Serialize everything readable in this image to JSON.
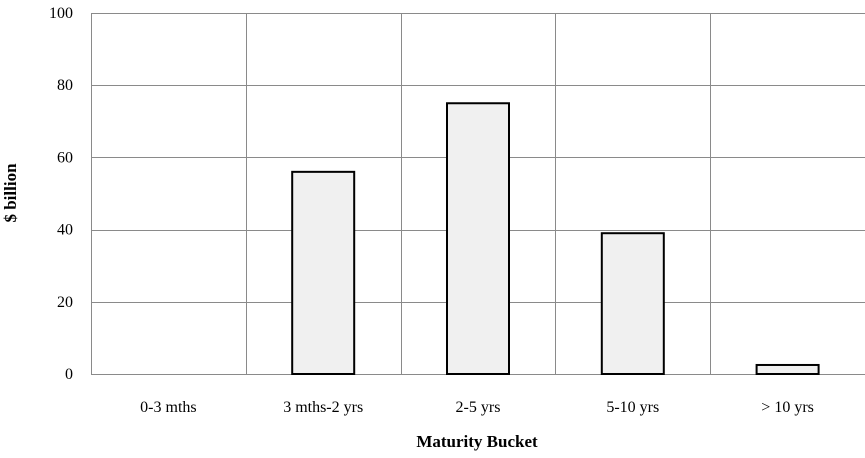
{
  "chart_data": {
    "type": "bar",
    "title": "",
    "xlabel": "Maturity Bucket",
    "ylabel": "$ billion",
    "categories": [
      "0-3 mths",
      "3 mths-2 yrs",
      "2-5 yrs",
      "5-10 yrs",
      "> 10 yrs"
    ],
    "values": [
      0,
      56,
      75,
      39,
      2.5
    ],
    "ylim": [
      0,
      100
    ],
    "yticks": [
      "0",
      "20",
      "40",
      "60",
      "80",
      "100"
    ],
    "grid": true,
    "legend": "none",
    "colors": {
      "bar_fill": "#f0f0f0",
      "bar_stroke": "#000000",
      "grid": "#8a8a8a"
    }
  }
}
